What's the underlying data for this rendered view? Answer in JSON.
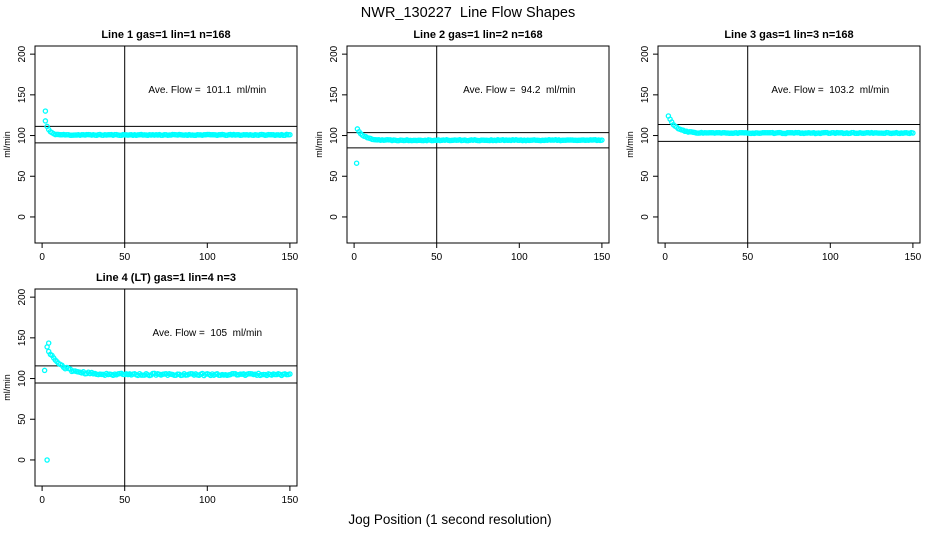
{
  "page": {
    "title": "NWR_130227  Line Flow Shapes",
    "footer_label": "Jog Position (1 second resolution)"
  },
  "chart_data": {
    "type": "scatter",
    "title": "NWR_130227  Line Flow Shapes",
    "xlabel": "Jog Position (1 second resolution)",
    "ylabel": "ml/min",
    "point_color": "#00ffff",
    "line_color": "#000000",
    "grid": false,
    "legend": "none",
    "x_ticks": [
      0,
      50,
      100,
      150
    ],
    "y_ticks": [
      0,
      50,
      100,
      150,
      200
    ],
    "x_range": [
      -4.3,
      154.3
    ],
    "y_range": [
      -32,
      210
    ],
    "vline_x": 50,
    "annotation_pos": {
      "x": 100,
      "y": 152
    },
    "panels": [
      {
        "id": "line-1",
        "title": "Line 1 gas=1 lin=1 n=168",
        "annotation": "Ave. Flow =  101.1  ml/min",
        "ave_flow_ml_min": 101.1,
        "gas": 1,
        "lin": 1,
        "n": 168,
        "hlines": [
          111.2,
          91.0
        ],
        "outlier_points": [
          [
            2,
            130
          ]
        ],
        "series_model": {
          "x_start": 2,
          "x_end": 150,
          "step": 1,
          "start_y": 118,
          "settle_y": 100.8,
          "tau": 2,
          "noise": 0.55,
          "seed": 11
        }
      },
      {
        "id": "line-2",
        "title": "Line 2 gas=1 lin=2 n=168",
        "annotation": "Ave. Flow =  94.2  ml/min",
        "ave_flow_ml_min": 94.2,
        "gas": 1,
        "lin": 2,
        "n": 168,
        "hlines": [
          103.6,
          84.8
        ],
        "outlier_points": [
          [
            1.5,
            66
          ]
        ],
        "series_model": {
          "x_start": 2,
          "x_end": 150,
          "step": 1,
          "start_y": 108,
          "settle_y": 94.3,
          "tau": 4,
          "noise": 0.55,
          "seed": 22
        }
      },
      {
        "id": "line-3",
        "title": "Line 3 gas=1 lin=3 n=168",
        "annotation": "Ave. Flow =  103.2  ml/min",
        "ave_flow_ml_min": 103.2,
        "gas": 1,
        "lin": 3,
        "n": 168,
        "hlines": [
          113.5,
          92.9
        ],
        "outlier_points": [],
        "series_model": {
          "x_start": 2,
          "x_end": 150,
          "step": 1,
          "start_y": 124,
          "settle_y": 103.1,
          "tau": 4.5,
          "noise": 0.55,
          "seed": 33
        }
      },
      {
        "id": "line-4",
        "title": "Line 4 (LT) gas=1 lin=4 n=3",
        "annotation": "Ave. Flow =  105  ml/min",
        "ave_flow_ml_min": 105,
        "gas": 1,
        "lin": 4,
        "n": 3,
        "hlines": [
          115.5,
          94.5
        ],
        "outlier_points": [
          [
            3,
            0
          ],
          [
            1.5,
            110
          ],
          [
            4,
            143.5
          ]
        ],
        "series_model": {
          "x_start": 3,
          "x_end": 150,
          "step": 1,
          "start_y": 138,
          "settle_y": 105,
          "tau": 8,
          "noise": 1.3,
          "seed": 44
        }
      }
    ]
  }
}
